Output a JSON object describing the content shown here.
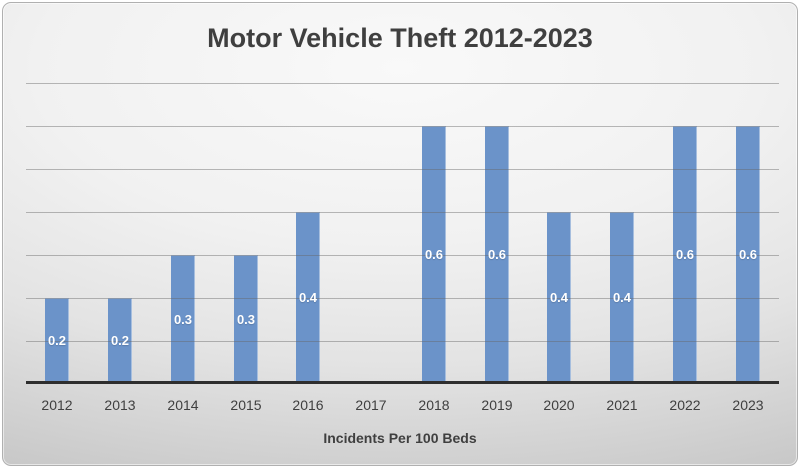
{
  "chart_data": {
    "type": "bar",
    "title": "Motor Vehicle Theft 2012-2023",
    "categories": [
      "2012",
      "2013",
      "2014",
      "2015",
      "2016",
      "2017",
      "2018",
      "2019",
      "2020",
      "2021",
      "2022",
      "2023"
    ],
    "values": [
      0.2,
      0.2,
      0.3,
      0.3,
      0.4,
      0,
      0.6,
      0.6,
      0.4,
      0.4,
      0.6,
      0.6
    ],
    "data_labels": [
      "0.2",
      "0.2",
      "0.3",
      "0.3",
      "0.4",
      "",
      "0.6",
      "0.6",
      "0.4",
      "0.4",
      "0.6",
      "0.6"
    ],
    "xlabel": "Incidents Per 100 Beds",
    "ylabel": "",
    "ylim": [
      0,
      0.7
    ],
    "gridline_step": 0.1,
    "grid": "on",
    "legend": "none",
    "y_axis_labels_shown": false,
    "colors": {
      "bar_fill": "#6b93c9",
      "data_label_text": "#ffffff",
      "title_text": "#3f3f3f",
      "axis_text": "#3f3f3f",
      "gridline": "#a0a0a0",
      "axis_line": "#2e2e2e"
    }
  }
}
